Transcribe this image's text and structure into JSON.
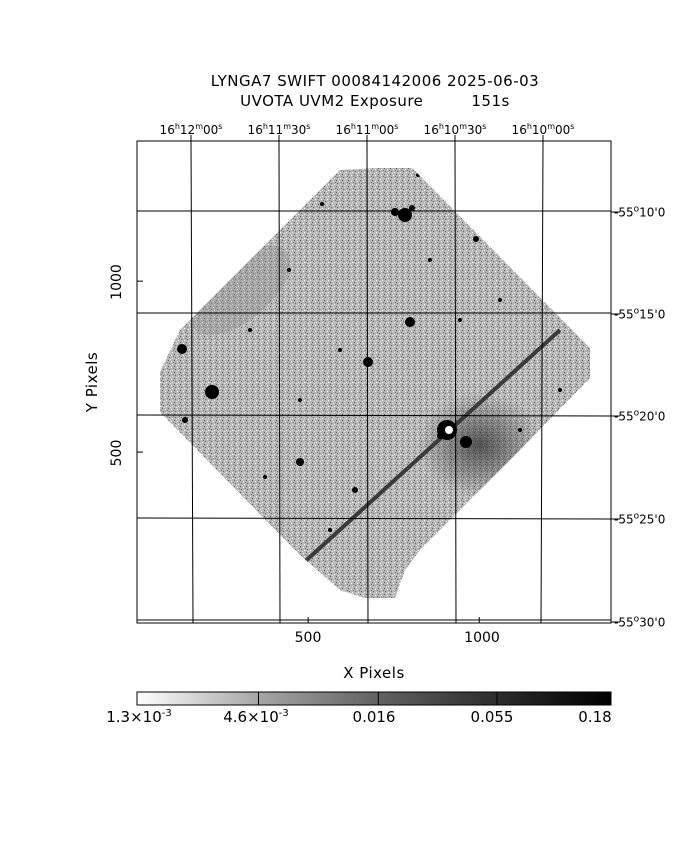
{
  "header": {
    "title_line1": "LYNGA7  SWIFT  00084142006  2025-06-03",
    "title_line2_left": "UVOTA  UVM2  Exposure",
    "title_line2_right": "151s"
  },
  "axes": {
    "x_label": "X  Pixels",
    "y_label": "Y  Pixels",
    "x_ticks": [
      {
        "value": 500,
        "label": "500"
      },
      {
        "value": 1000,
        "label": "1000"
      }
    ],
    "y_ticks": [
      {
        "value": 500,
        "label": "500"
      },
      {
        "value": 1000,
        "label": "1000"
      }
    ],
    "x_range": [
      0,
      1385
    ],
    "y_range": [
      0,
      1410
    ],
    "ra_ticks": [
      {
        "h": "16",
        "m": "12",
        "s": "00",
        "label": "16h12m00s"
      },
      {
        "h": "16",
        "m": "11",
        "s": "30",
        "label": "16h11m30s"
      },
      {
        "h": "16",
        "m": "11",
        "s": "00",
        "label": "16h11m00s"
      },
      {
        "h": "16",
        "m": "10",
        "s": "30",
        "label": "16h10m30s"
      },
      {
        "h": "16",
        "m": "10",
        "s": "00",
        "label": "16h10m00s"
      }
    ],
    "dec_ticks": [
      {
        "deg": "-55",
        "min": "10",
        "sec": "0",
        "label": "-55°10'0"
      },
      {
        "deg": "-55",
        "min": "15",
        "sec": "0",
        "label": "-55°15'0"
      },
      {
        "deg": "-55",
        "min": "20",
        "sec": "0",
        "label": "-55°20'0"
      },
      {
        "deg": "-55",
        "min": "25",
        "sec": "0",
        "label": "-55°25'0"
      },
      {
        "deg": "-55",
        "min": "30",
        "sec": "0",
        "label": "-55°30'0"
      }
    ]
  },
  "colorbar": {
    "scale": "log",
    "min": 0.0013,
    "max": 0.18,
    "labels": [
      {
        "value": 0.0013,
        "mant": "1.3",
        "exp": "-3",
        "label": "1.3×10-3"
      },
      {
        "value": 0.0046,
        "mant": "4.6",
        "exp": "-3",
        "label": "4.6×10-3"
      },
      {
        "value": 0.016,
        "label": "0.016"
      },
      {
        "value": 0.055,
        "label": "0.055"
      },
      {
        "value": 0.18,
        "label": "0.18"
      }
    ],
    "colors": {
      "low": "#ffffff",
      "high": "#000000"
    }
  }
}
